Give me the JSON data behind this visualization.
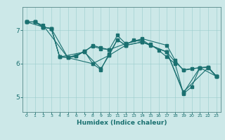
{
  "title": "",
  "xlabel": "Humidex (Indice chaleur)",
  "bg_color": "#cce8e8",
  "line_color": "#1a7070",
  "xlim": [
    -0.5,
    23.5
  ],
  "ylim": [
    4.55,
    7.7
  ],
  "yticks": [
    5,
    6,
    7
  ],
  "xticks": [
    0,
    1,
    2,
    3,
    4,
    5,
    6,
    7,
    8,
    9,
    10,
    11,
    12,
    13,
    14,
    15,
    16,
    17,
    18,
    19,
    20,
    21,
    22,
    23
  ],
  "lines": [
    {
      "x": [
        0,
        1,
        2,
        3,
        4,
        5,
        6,
        7,
        8,
        9,
        10,
        11,
        12,
        13,
        14,
        15,
        16,
        17,
        18,
        19,
        20,
        21,
        22,
        23
      ],
      "y": [
        7.25,
        7.25,
        7.1,
        7.05,
        6.2,
        6.18,
        6.22,
        6.38,
        6.0,
        5.82,
        6.3,
        6.72,
        6.55,
        6.72,
        6.65,
        6.58,
        6.4,
        6.2,
        6.0,
        5.1,
        5.3,
        5.88,
        5.88,
        5.62
      ]
    },
    {
      "x": [
        0,
        1,
        2,
        3,
        5,
        7,
        9,
        10,
        11,
        12,
        14,
        17,
        19,
        21,
        23
      ],
      "y": [
        7.25,
        7.25,
        7.1,
        7.05,
        6.18,
        6.35,
        5.85,
        6.25,
        6.72,
        6.55,
        6.65,
        6.35,
        5.12,
        5.88,
        5.62
      ]
    },
    {
      "x": [
        0,
        1,
        2,
        3,
        4,
        7,
        8,
        9,
        10,
        11,
        12,
        14,
        17,
        18,
        19,
        21,
        22,
        23
      ],
      "y": [
        7.25,
        7.25,
        7.1,
        7.05,
        6.2,
        6.35,
        6.55,
        6.48,
        6.42,
        6.85,
        6.6,
        6.75,
        6.55,
        6.1,
        5.8,
        5.88,
        5.9,
        5.62
      ]
    },
    {
      "x": [
        0,
        2,
        3,
        4,
        6,
        7,
        8,
        9,
        10,
        12,
        14,
        15,
        17,
        18,
        19,
        20,
        21,
        22,
        23
      ],
      "y": [
        7.25,
        7.1,
        7.05,
        6.2,
        6.22,
        6.38,
        6.52,
        6.45,
        6.42,
        6.6,
        6.72,
        6.55,
        6.35,
        6.05,
        5.82,
        5.85,
        5.88,
        5.9,
        5.62
      ]
    },
    {
      "x": [
        0,
        1,
        2,
        5,
        8,
        10,
        12,
        14,
        17,
        19,
        22,
        23
      ],
      "y": [
        7.25,
        7.25,
        7.15,
        6.18,
        6.0,
        6.25,
        6.55,
        6.65,
        6.35,
        5.15,
        5.88,
        5.62
      ]
    }
  ]
}
